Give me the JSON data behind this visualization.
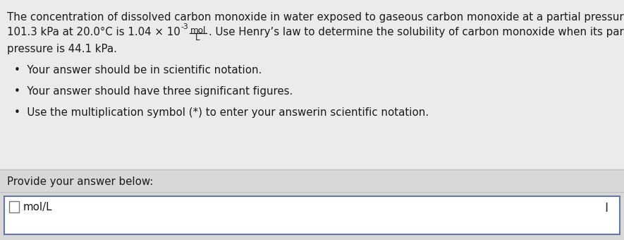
{
  "upper_bg": "#ebebeb",
  "lower_bg": "#d8d8d8",
  "input_box_bg": "#ffffff",
  "input_box_border": "#6677aa",
  "divider_color": "#c0c0c0",
  "text_color": "#1a1a1a",
  "line1": "The concentration of dissolved carbon monoxide in water exposed to gaseous carbon monoxide at a partial pressure of",
  "line2_pre": "101.3 kPa at 20.0°C is 1.04 × 10",
  "line2_sup": "-3",
  "line2_mol": "mol",
  "line2_L": "L",
  "line2_post": ". Use Henry’s law to determine the solubility of carbon monoxide when its partial",
  "line3": "pressure is 44.1 kPa.",
  "bullet1": "Your answer should be in scientific notation.",
  "bullet2": "Your answer should have three significant figures.",
  "bullet3": "Use the multiplication symbol (*) to enter your answer​in scientific notation.",
  "provide_label": "Provide your answer below:",
  "unit_label": "mol/L",
  "font_size_main": 10.8,
  "font_size_bullet": 10.8,
  "font_size_provide": 10.8,
  "font_size_unit": 10.8,
  "fig_width": 8.85,
  "fig_height": 3.4,
  "dpi": 100
}
